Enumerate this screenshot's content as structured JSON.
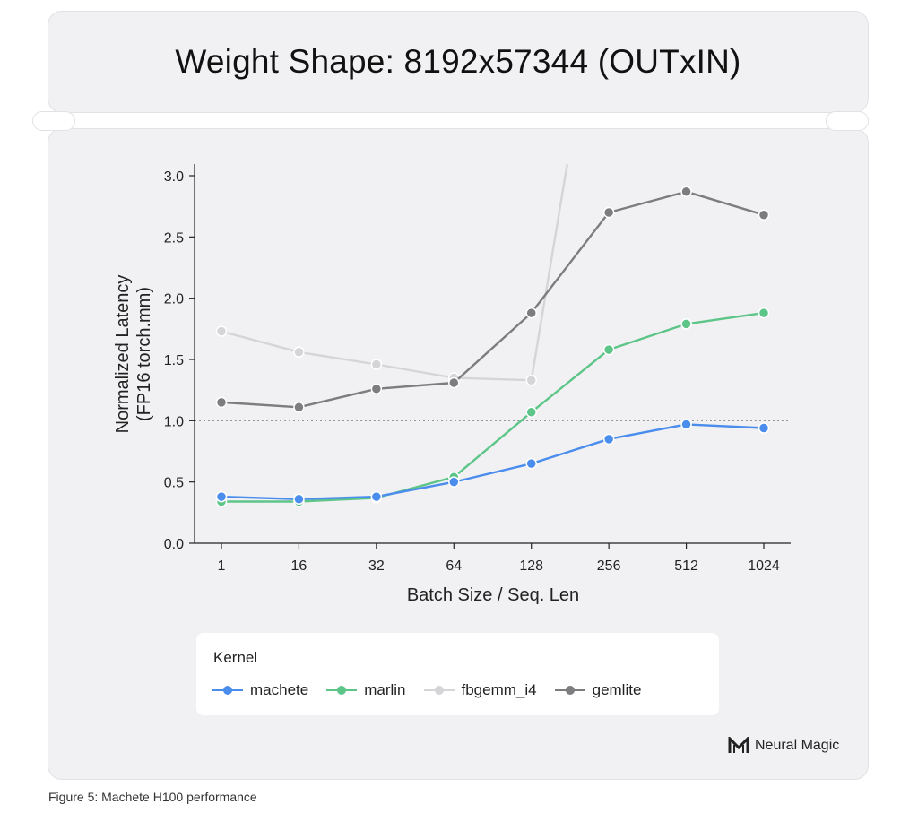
{
  "page": {
    "caption": "Figure 5: Machete H100 performance",
    "brand": "Neural Magic"
  },
  "chart_data": {
    "type": "line",
    "title": "Weight Shape: 8192x57344 (OUTxIN)",
    "xlabel": "Batch Size / Seq. Len",
    "ylabel": "Normalized Latency (FP16 torch.mm)",
    "ylabel_lines": [
      "Normalized Latency",
      "(FP16 torch.mm)"
    ],
    "categories": [
      "1",
      "16",
      "32",
      "64",
      "128",
      "256",
      "512",
      "1024"
    ],
    "ylim": [
      0,
      3.1
    ],
    "yticks": [
      0.0,
      0.5,
      1.0,
      1.5,
      2.0,
      2.5,
      3.0
    ],
    "ytick_labels": [
      "0.0",
      "0.5",
      "1.0",
      "1.5",
      "2.0",
      "2.5",
      "3.0"
    ],
    "reference_line": 1.0,
    "grid": false,
    "legend": {
      "title": "Kernel",
      "placement": "bottom"
    },
    "series": [
      {
        "name": "machete",
        "color": "#4a8ded",
        "values": [
          0.38,
          0.36,
          0.38,
          0.5,
          0.65,
          0.85,
          0.97,
          0.94
        ]
      },
      {
        "name": "marlin",
        "color": "#5ec589",
        "values": [
          0.34,
          0.34,
          0.37,
          0.54,
          1.07,
          1.58,
          1.79,
          1.88
        ]
      },
      {
        "name": "fbgemm_i4",
        "color": "#d5d5d8",
        "values": [
          1.73,
          1.56,
          1.46,
          1.35,
          1.33,
          null,
          null,
          null
        ],
        "offscale_after_last": true
      },
      {
        "name": "gemlite",
        "color": "#7d7d80",
        "values": [
          1.15,
          1.11,
          1.26,
          1.31,
          1.88,
          2.7,
          2.87,
          2.68
        ]
      }
    ]
  }
}
